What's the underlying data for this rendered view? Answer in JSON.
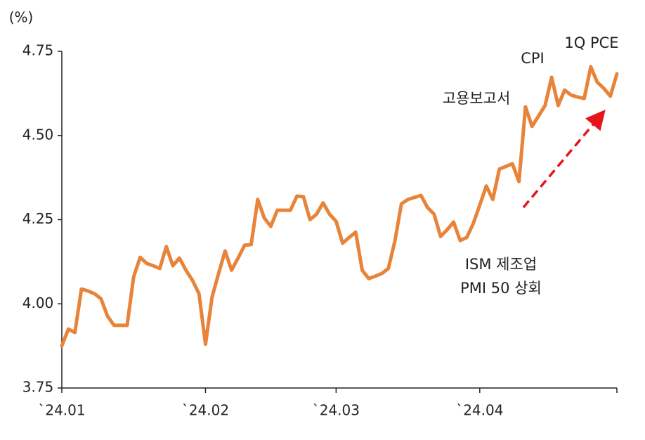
{
  "chart_data": {
    "type": "line",
    "unit_label": "(%)",
    "categories": [
      "`24.01",
      null,
      null,
      null,
      null,
      null,
      null,
      null,
      null,
      null,
      null,
      null,
      null,
      null,
      null,
      null,
      null,
      null,
      null,
      null,
      null,
      null,
      "`24.02",
      null,
      null,
      null,
      null,
      null,
      null,
      null,
      null,
      null,
      null,
      null,
      null,
      null,
      null,
      null,
      null,
      null,
      null,
      null,
      "`24.03",
      null,
      null,
      null,
      null,
      null,
      null,
      null,
      null,
      null,
      null,
      null,
      null,
      null,
      null,
      null,
      null,
      null,
      null,
      null,
      null,
      null,
      "`24.04",
      null,
      null,
      null,
      null,
      null,
      null,
      null,
      null,
      null,
      null,
      null,
      null,
      null,
      null,
      null,
      null,
      null,
      null,
      null,
      null,
      null
    ],
    "series": [
      {
        "color": "#e8843a",
        "values": [
          3.875,
          3.925,
          3.915,
          4.044,
          4.038,
          4.03,
          4.015,
          3.963,
          3.936,
          3.936,
          3.936,
          4.08,
          4.138,
          4.12,
          4.113,
          4.105,
          4.17,
          4.113,
          4.136,
          4.1,
          4.07,
          4.03,
          3.88,
          4.02,
          4.09,
          4.157,
          4.1,
          4.136,
          4.174,
          4.176,
          4.31,
          4.255,
          4.23,
          4.278,
          4.278,
          4.278,
          4.32,
          4.318,
          4.25,
          4.266,
          4.3,
          4.266,
          4.245,
          4.18,
          4.197,
          4.213,
          4.1,
          4.075,
          4.082,
          4.09,
          4.105,
          4.186,
          4.297,
          4.31,
          4.316,
          4.322,
          4.286,
          4.266,
          4.2,
          4.22,
          4.243,
          4.188,
          4.197,
          4.238,
          4.293,
          4.35,
          4.31,
          4.4,
          4.408,
          4.416,
          4.363,
          4.585,
          4.527,
          4.558,
          4.589,
          4.673,
          4.589,
          4.635,
          4.62,
          4.614,
          4.61,
          4.704,
          4.658,
          4.64,
          4.617,
          4.683
        ]
      }
    ],
    "ylim": [
      3.75,
      4.75
    ],
    "yticks": [
      3.75,
      {
        "value": 4,
        "label": "4.00"
      },
      4.25,
      {
        "value": 4.5,
        "label": "4.50"
      },
      4.75
    ],
    "grid": false,
    "annotations": [
      "1Q PCE",
      "CPI",
      "고용보고서",
      "ISM 제조업",
      "PMI 50 상회"
    ]
  }
}
